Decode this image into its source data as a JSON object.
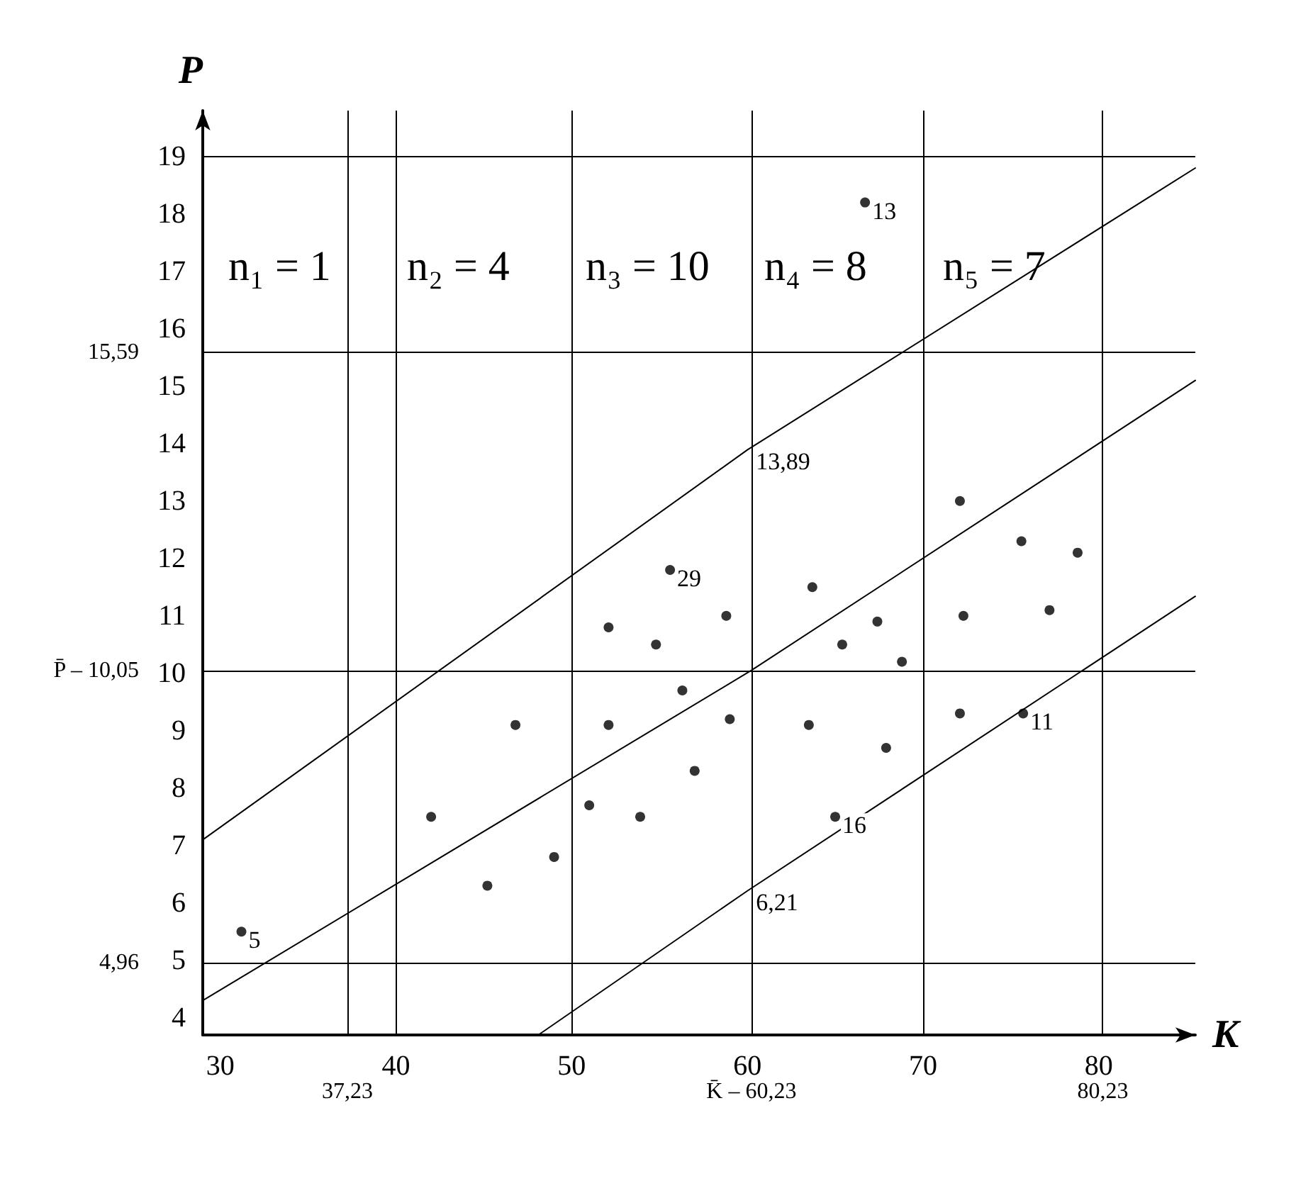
{
  "chart_data": {
    "type": "scatter",
    "xlabel": "K",
    "ylabel": "P",
    "xlim": [
      29,
      85.5
    ],
    "ylim": [
      3.7,
      19.8
    ],
    "xticks": [
      30,
      40,
      50,
      60,
      70,
      80
    ],
    "yticks": [
      4,
      5,
      6,
      7,
      8,
      9,
      10,
      11,
      12,
      13,
      14,
      15,
      16,
      17,
      18,
      19
    ],
    "grid": false,
    "marker": "circle",
    "series": [
      {
        "color": "#000000",
        "x": [
          31.2,
          42.0,
          45.2,
          46.8,
          49.0,
          51.0,
          52.1,
          52.1,
          53.9,
          54.8,
          55.6,
          56.3,
          57.0,
          58.8,
          59.0,
          63.5,
          63.7,
          65.0,
          65.4,
          66.7,
          67.4,
          67.9,
          68.8,
          72.1,
          72.1,
          72.3,
          75.6,
          75.7,
          77.2,
          78.8
        ],
        "values": [
          5.5,
          7.5,
          6.3,
          9.1,
          6.8,
          7.7,
          9.1,
          10.8,
          7.5,
          10.5,
          11.8,
          9.7,
          8.3,
          11.0,
          9.2,
          9.1,
          11.5,
          7.5,
          10.5,
          18.2,
          10.9,
          8.7,
          10.2,
          13.0,
          9.3,
          11.0,
          12.3,
          9.3,
          11.1,
          12.1
        ]
      },
      {
        "type": "line",
        "marker": "none",
        "color": "#000000",
        "x": [
          29,
          60,
          85.5
        ],
        "values": [
          7.1,
          13.89,
          18.8
        ],
        "value_labels": [
          null,
          "13,89",
          null
        ]
      },
      {
        "type": "line",
        "marker": "none",
        "color": "#000000",
        "x": [
          29,
          60.23,
          85.5
        ],
        "values": [
          4.3,
          10.05,
          15.1
        ]
      },
      {
        "type": "line",
        "marker": "none",
        "color": "#000000",
        "x": [
          48.1,
          60,
          85.5
        ],
        "values": [
          3.7,
          6.21,
          11.34
        ],
        "value_labels": [
          null,
          "6,21",
          null
        ]
      }
    ],
    "line_style": "solid",
    "ref_lines": [
      {
        "axis": "x",
        "value": 37.23,
        "label": "37,23"
      },
      {
        "axis": "x",
        "value": 40,
        "label": null
      },
      {
        "axis": "x",
        "value": 50,
        "label": null
      },
      {
        "axis": "x",
        "value": 60.23,
        "label": "K̄ – 60,23"
      },
      {
        "axis": "x",
        "value": 70,
        "label": null
      },
      {
        "axis": "x",
        "value": 80.23,
        "label": "80,23"
      },
      {
        "axis": "y",
        "value": 4.96,
        "label": "4,96"
      },
      {
        "axis": "y",
        "value": 10.05,
        "label": "P̄ – 10,05"
      },
      {
        "axis": "y",
        "value": 15.59,
        "label": "15,59"
      },
      {
        "axis": "y",
        "value": 19,
        "label": null
      }
    ],
    "annotations": [
      "n₁ = 1",
      "n₂ = 4",
      "n₃ = 10",
      "n₄ = 8",
      "n₅ = 7",
      {
        "text": "5",
        "x": 31.2,
        "y": 5.5
      },
      {
        "text": "29",
        "x": 55.6,
        "y": 11.8
      },
      {
        "text": "16",
        "x": 65.0,
        "y": 7.5
      },
      {
        "text": "13",
        "x": 66.7,
        "y": 18.2
      },
      {
        "text": "11",
        "x": 75.7,
        "y": 9.3
      }
    ]
  }
}
